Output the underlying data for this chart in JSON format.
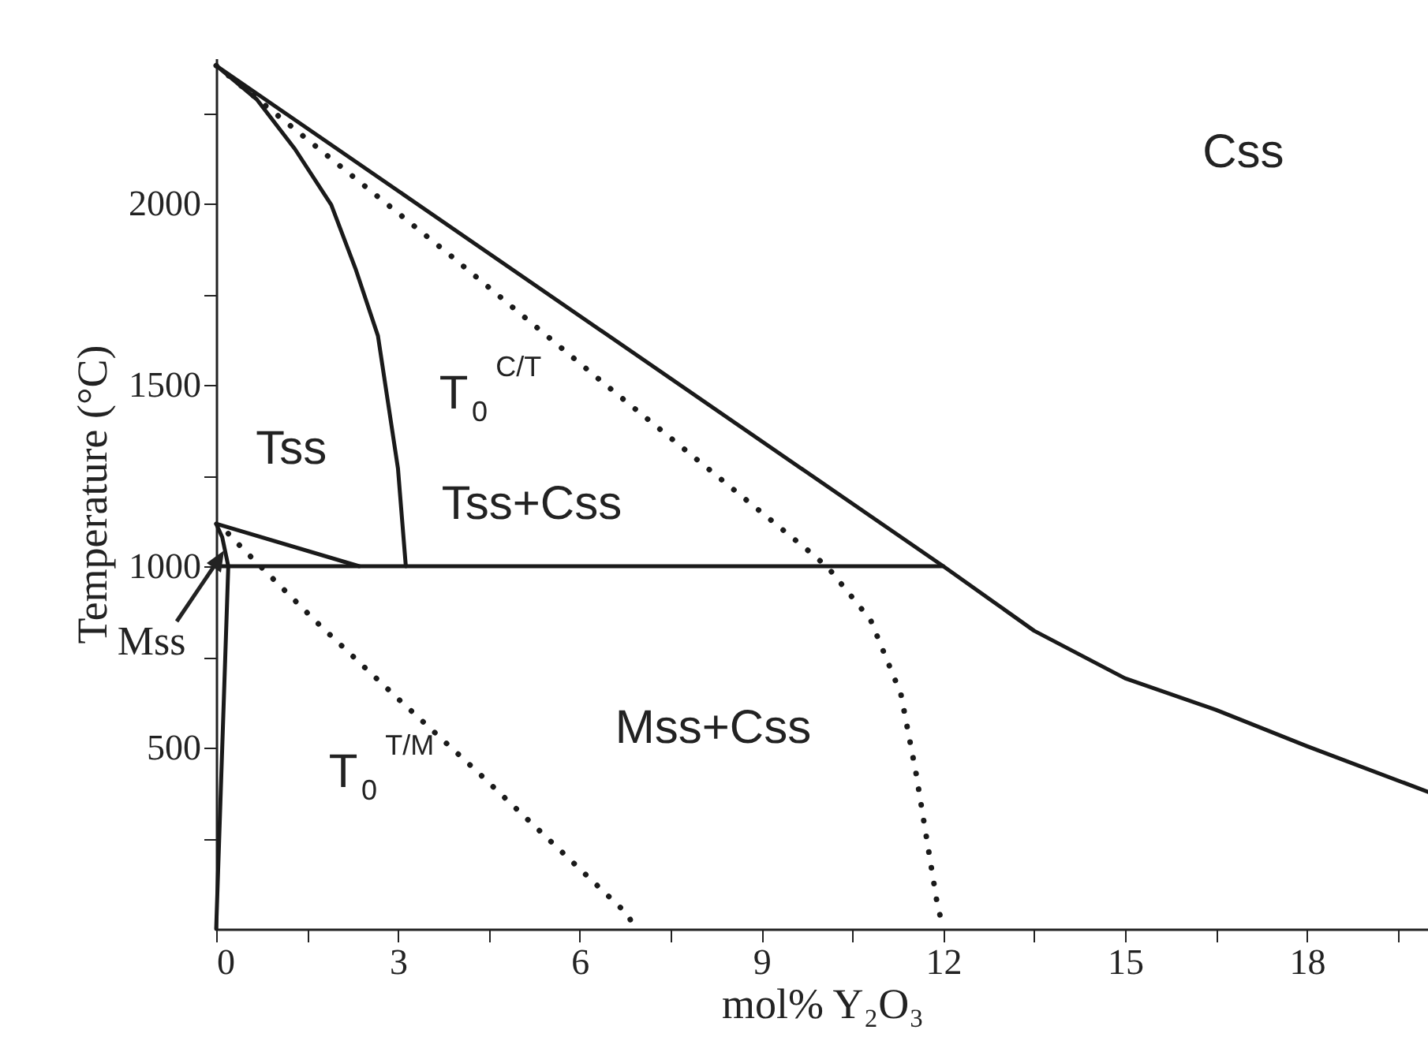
{
  "chart_data": {
    "type": "line",
    "xlabel": "mol% Y₂O₃",
    "ylabel": "Temperature (°C)",
    "xlim": [
      0,
      20
    ],
    "ylim": [
      0,
      2400
    ],
    "xticks": [
      0,
      {
        "value": 1.5,
        "label": null
      },
      3,
      {
        "value": 4.5,
        "label": null
      },
      6,
      {
        "value": 7.5,
        "label": null
      },
      9,
      {
        "value": 10.5,
        "label": null
      },
      12,
      {
        "value": 13.5,
        "label": null
      },
      15,
      {
        "value": 16.5,
        "label": null
      },
      18,
      {
        "value": 19.5,
        "label": null
      }
    ],
    "yticks": [
      {
        "value": 250,
        "label": null
      },
      500,
      {
        "value": 750,
        "label": null
      },
      1000,
      {
        "value": 1250,
        "label": null
      },
      1500,
      {
        "value": 1750,
        "label": null
      },
      2000,
      {
        "value": 2250,
        "label": null
      }
    ],
    "grid": false,
    "series": [
      {
        "color": "#1a1a1a",
        "line_style": "solid",
        "x": [
          0,
          12,
          13.5,
          15,
          16.5,
          18,
          20
        ],
        "values": [
          2380,
          1000,
          822,
          691,
          604,
          504,
          378
        ]
      },
      {
        "color": "#1a1a1a",
        "line_style": "solid",
        "x": [
          0,
          0.67,
          1.3,
          1.9,
          2.3,
          2.67,
          3.0,
          3.13
        ],
        "values": [
          2380,
          2287,
          2150,
          1996,
          1820,
          1635,
          1270,
          1000
        ]
      },
      {
        "color": "#1a1a1a",
        "line_style": "solid",
        "x": [
          0,
          12
        ],
        "values": [
          1000,
          1000
        ]
      },
      {
        "color": "#1a1a1a",
        "line_style": "solid",
        "x": [
          0,
          2.36
        ],
        "values": [
          1117,
          1000
        ]
      },
      {
        "color": "#1a1a1a",
        "line_style": "solid",
        "x": [
          0,
          0.1,
          0.2,
          0.1,
          0
        ],
        "values": [
          0,
          500,
          1000,
          1080,
          1117
        ]
      },
      {
        "color": "#1a1a1a",
        "line_style": "dotted",
        "x": [
          0,
          0.85,
          3.9,
          6.4,
          9.8,
          10.1,
          10.8,
          11.3,
          11.55,
          11.9,
          12
        ],
        "values": [
          2380,
          2265,
          1852,
          1504,
          1039,
          996,
          852,
          648,
          430,
          70,
          0
        ]
      },
      {
        "color": "#1a1a1a",
        "line_style": "dotted",
        "x": [
          0.2,
          0.47,
          1.7,
          3.0,
          4.3,
          6.8,
          6.9
        ],
        "values": [
          1090,
          1043,
          839,
          635,
          435,
          39,
          0
        ]
      }
    ],
    "annotations": [
      "Css",
      "T$_{0}$$^{C/T}$",
      "Tss",
      "Tss+Css",
      "Mss+Css",
      "T$_{0}$$^{T/M}$",
      "Mss"
    ]
  }
}
